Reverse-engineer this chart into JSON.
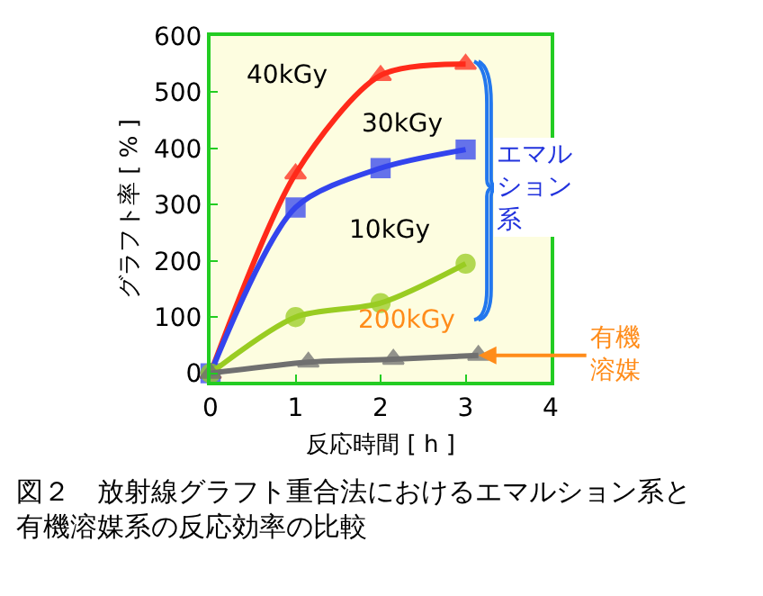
{
  "chart_data": {
    "type": "line",
    "xlabel": "反応時間 [ h ]",
    "ylabel": "グラフト率 [ % ]",
    "xlim": [
      0,
      4
    ],
    "xticks": [
      0,
      1,
      2,
      3,
      4
    ],
    "ylim": [
      -15,
      600
    ],
    "yticks": [
      0,
      100,
      200,
      300,
      400,
      500,
      600
    ],
    "grid": false,
    "legend": false,
    "series": [
      {
        "name": "40kGy",
        "color": "#ff2a1a",
        "marker": "triangle",
        "x": [
          0,
          1,
          2,
          3
        ],
        "values": [
          0,
          355,
          530,
          550
        ]
      },
      {
        "name": "30kGy",
        "color": "#3344ee",
        "marker": "square",
        "x": [
          0,
          1,
          2,
          3
        ],
        "values": [
          0,
          295,
          365,
          398
        ]
      },
      {
        "name": "10kGy",
        "color": "#99cc22",
        "marker": "circle",
        "x": [
          0,
          1,
          2,
          3
        ],
        "values": [
          0,
          100,
          125,
          195
        ]
      },
      {
        "name": "200kGy",
        "color": "#707070",
        "marker": "triangle",
        "x": [
          0,
          1.15,
          2.15,
          3.15
        ],
        "values": [
          0,
          20,
          25,
          32
        ]
      }
    ],
    "annotations": [
      {
        "text": "有機溶媒",
        "x": 3.15,
        "y": 32
      },
      "エマルション系",
      "図２　放射線グラフト重合法におけるエマルション系と有機溶媒系の反応効率の比較"
    ]
  }
}
